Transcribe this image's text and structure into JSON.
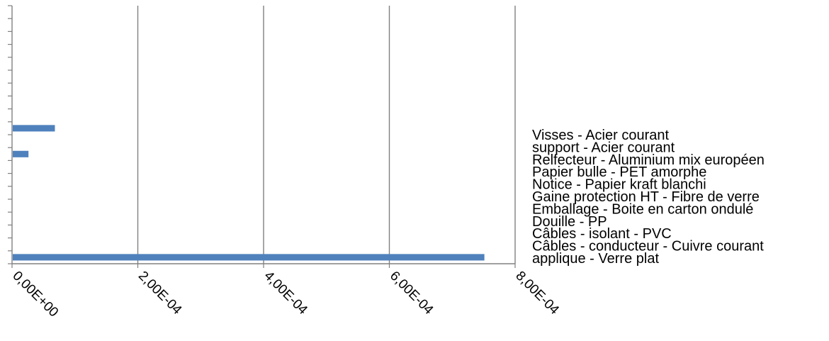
{
  "chart_data": {
    "type": "bar",
    "orientation": "horizontal",
    "categories": [
      "applique - Verre plat",
      "Câbles - conducteur - Cuivre courant",
      "Câbles - isolant - PVC",
      "Douille - PP",
      "Emballage - Boite en carton ondulé",
      "Gaine protection HT - Fibre de verre",
      "Notice - Papier kraft blanchi",
      "Papier bulle - PET amorphe",
      "Relfecteur - Aluminium mix européen",
      "support - Acier courant",
      "Visses - Acier courant"
    ],
    "values": [
      0.00075,
      0,
      0,
      0,
      2.5e-05,
      6.7e-05,
      0,
      0,
      0,
      0,
      0
    ],
    "xlim": [
      0,
      0.0008
    ],
    "xticks": [
      0,
      0.0002,
      0.0004,
      0.0006,
      0.0008
    ],
    "xtick_labels": [
      "0,00E+00",
      "2,00E-04",
      "4,00E-04",
      "6,00E-04",
      "8,00E-04"
    ],
    "grid": "vertical",
    "legend": "right",
    "colors": {
      "bar": "#4f81bd",
      "axis": "#808080"
    }
  }
}
